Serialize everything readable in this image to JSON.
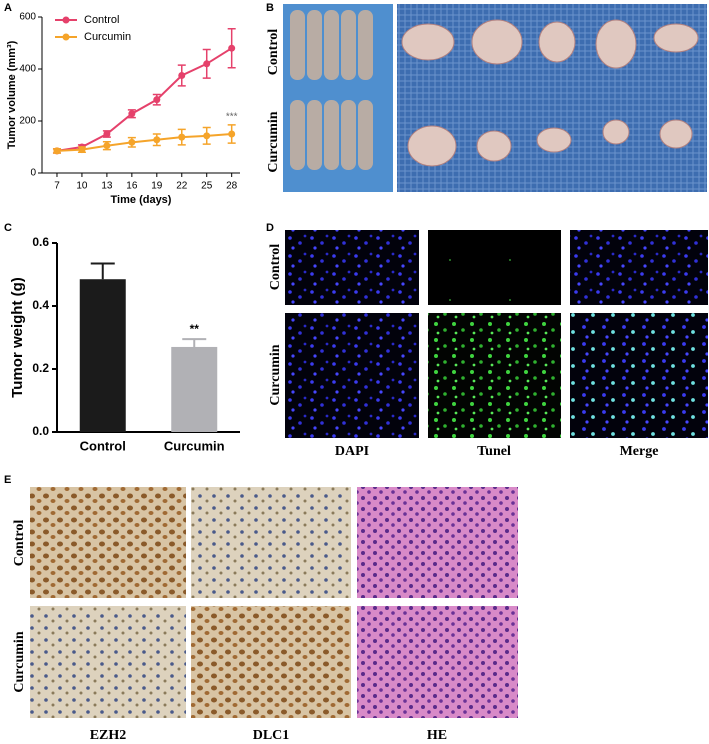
{
  "panels": {
    "labels": [
      "A",
      "B",
      "C",
      "D",
      "E"
    ]
  },
  "photo_b": {
    "rows": [
      "Control",
      "Curcumin"
    ]
  },
  "fluorescence_d": {
    "rows": [
      "Control",
      "Curcumin"
    ],
    "columns": [
      "DAPI",
      "Tunel",
      "Merge"
    ]
  },
  "ihc_e": {
    "rows": [
      "Control",
      "Curcumin"
    ],
    "columns": [
      "EZH2",
      "DLC1",
      "HE"
    ]
  },
  "chart_data": [
    {
      "type": "line",
      "xlabel": "Time (days)",
      "ylabel": "Tumor volume (mm³)",
      "x": [
        7,
        10,
        13,
        16,
        19,
        22,
        25,
        28
      ],
      "series": [
        {
          "name": "Control",
          "color": "#e5416b",
          "values": [
            85,
            100,
            150,
            228,
            282,
            375,
            420,
            480
          ],
          "errors": [
            8,
            8,
            12,
            15,
            20,
            40,
            55,
            75
          ]
        },
        {
          "name": "Curcumin",
          "color": "#f5a42a",
          "values": [
            85,
            90,
            105,
            118,
            128,
            138,
            143,
            150
          ],
          "errors": [
            8,
            10,
            15,
            18,
            22,
            30,
            32,
            35
          ]
        }
      ],
      "xlim": [
        5.2,
        29
      ],
      "xticks": [
        7,
        10,
        13,
        16,
        19,
        22,
        25,
        28
      ],
      "ylim": [
        0,
        600
      ],
      "yticks": [
        0,
        200,
        400,
        600
      ],
      "legend": "upper left",
      "annotation": "***"
    },
    {
      "type": "bar",
      "ylabel": "Tumor weight (g)",
      "categories": [
        "Control",
        "Curcumin"
      ],
      "values": [
        0.485,
        0.27
      ],
      "errors": [
        0.05,
        0.025
      ],
      "colors": [
        "#1b1b1b",
        "#b1b1b5"
      ],
      "ylim": [
        0,
        0.6
      ],
      "yticks": [
        {
          "value": 0,
          "label": "0.0"
        },
        0.2,
        0.4,
        0.6
      ],
      "annotation": "**"
    }
  ]
}
